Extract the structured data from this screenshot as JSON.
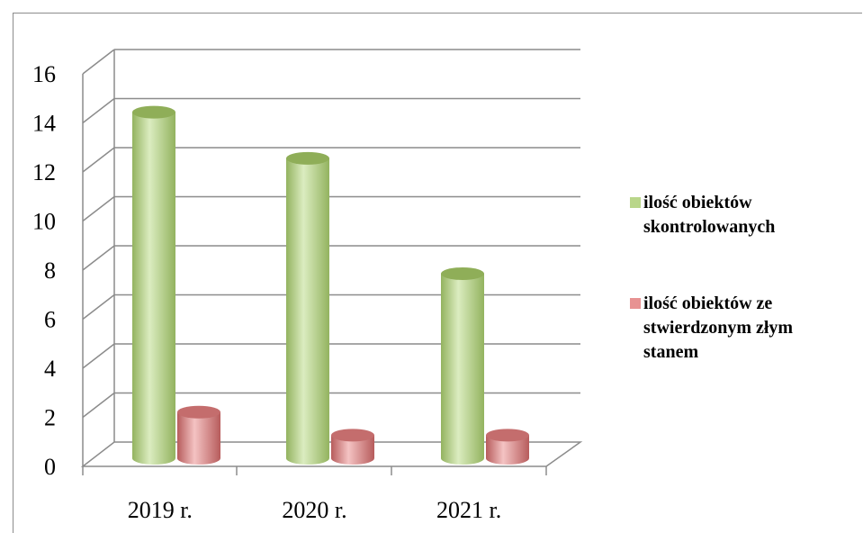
{
  "chart_data": {
    "type": "bar",
    "categories": [
      "2019 r.",
      "2020 r.",
      "2021 r."
    ],
    "series": [
      {
        "name": "ilość obiektów skontrolowanych",
        "values": [
          15,
          13,
          8
        ],
        "color": "#b9d68a"
      },
      {
        "name": "ilość obiektów ze stwierdzonym złym stanem",
        "values": [
          2,
          1,
          1
        ],
        "color": "#e79292"
      }
    ],
    "yticks": [
      0,
      2,
      4,
      6,
      8,
      10,
      12,
      14,
      16
    ],
    "ylim": [
      0,
      16
    ],
    "grid": true,
    "legend": "right",
    "legend_lines": [
      [
        "ilość obiektów",
        "skontrolowanych"
      ],
      [
        "ilość obiektów ze",
        "stwierdzonym złym",
        "stanem"
      ]
    ],
    "title": "",
    "xlabel": "",
    "ylabel": ""
  }
}
